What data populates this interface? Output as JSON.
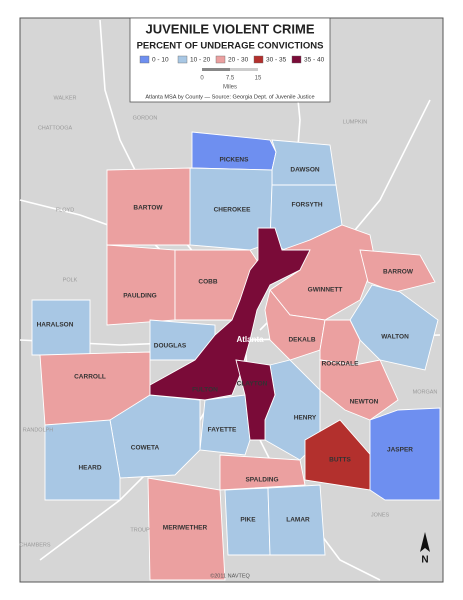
{
  "title": "JUVENILE VIOLENT CRIME",
  "subtitle": "PERCENT OF UNDERAGE CONVICTIONS",
  "legend": [
    {
      "label": "0 - 10",
      "color": "#6e8ff0"
    },
    {
      "label": "10 - 20",
      "color": "#a8c7e4"
    },
    {
      "label": "20 - 30",
      "color": "#eba0a0"
    },
    {
      "label": "30 - 35",
      "color": "#b3302d"
    },
    {
      "label": "35 - 40",
      "color": "#7a0b38"
    }
  ],
  "scale": {
    "ticks": [
      "0",
      "7.5",
      "15"
    ],
    "unit": "Miles"
  },
  "source": "Atlanta MSA by County — Source: Georgia Dept. of Juvenile Justice",
  "city": "Atlanta",
  "counties": [
    {
      "name": "PICKENS",
      "class": 0
    },
    {
      "name": "DAWSON",
      "class": 1
    },
    {
      "name": "CHEROKEE",
      "class": 1
    },
    {
      "name": "FORSYTH",
      "class": 1
    },
    {
      "name": "BARTOW",
      "class": 2
    },
    {
      "name": "PAULDING",
      "class": 2
    },
    {
      "name": "COBB",
      "class": 2
    },
    {
      "name": "GWINNETT",
      "class": 2
    },
    {
      "name": "BARROW",
      "class": 2
    },
    {
      "name": "DEKALB",
      "class": 2
    },
    {
      "name": "WALTON",
      "class": 1
    },
    {
      "name": "ROCKDALE",
      "class": 2
    },
    {
      "name": "NEWTON",
      "class": 2
    },
    {
      "name": "HENRY",
      "class": 1
    },
    {
      "name": "FAYETTE",
      "class": 1
    },
    {
      "name": "DOUGLAS",
      "class": 1
    },
    {
      "name": "HARALSON",
      "class": 1
    },
    {
      "name": "CARROLL",
      "class": 2
    },
    {
      "name": "COWETA",
      "class": 1
    },
    {
      "name": "HEARD",
      "class": 1
    },
    {
      "name": "SPALDING",
      "class": 2
    },
    {
      "name": "BUTTS",
      "class": 3
    },
    {
      "name": "JASPER",
      "class": 0
    },
    {
      "name": "MERIWETHER",
      "class": 2
    },
    {
      "name": "PIKE",
      "class": 1
    },
    {
      "name": "LAMAR",
      "class": 1
    },
    {
      "name": "FULTON",
      "class": 4
    },
    {
      "name": "CLAYTON",
      "class": 4
    }
  ],
  "background_labels": [
    "WALKER",
    "CHATTOOGA",
    "GORDON",
    "FLOYD",
    "POLK",
    "LUMPKIN",
    "MORGAN",
    "RANDOLPH",
    "TROUP",
    "JONES",
    "CHAMBERS"
  ],
  "copyright": "©2011 NAVTEQ",
  "north": "N"
}
